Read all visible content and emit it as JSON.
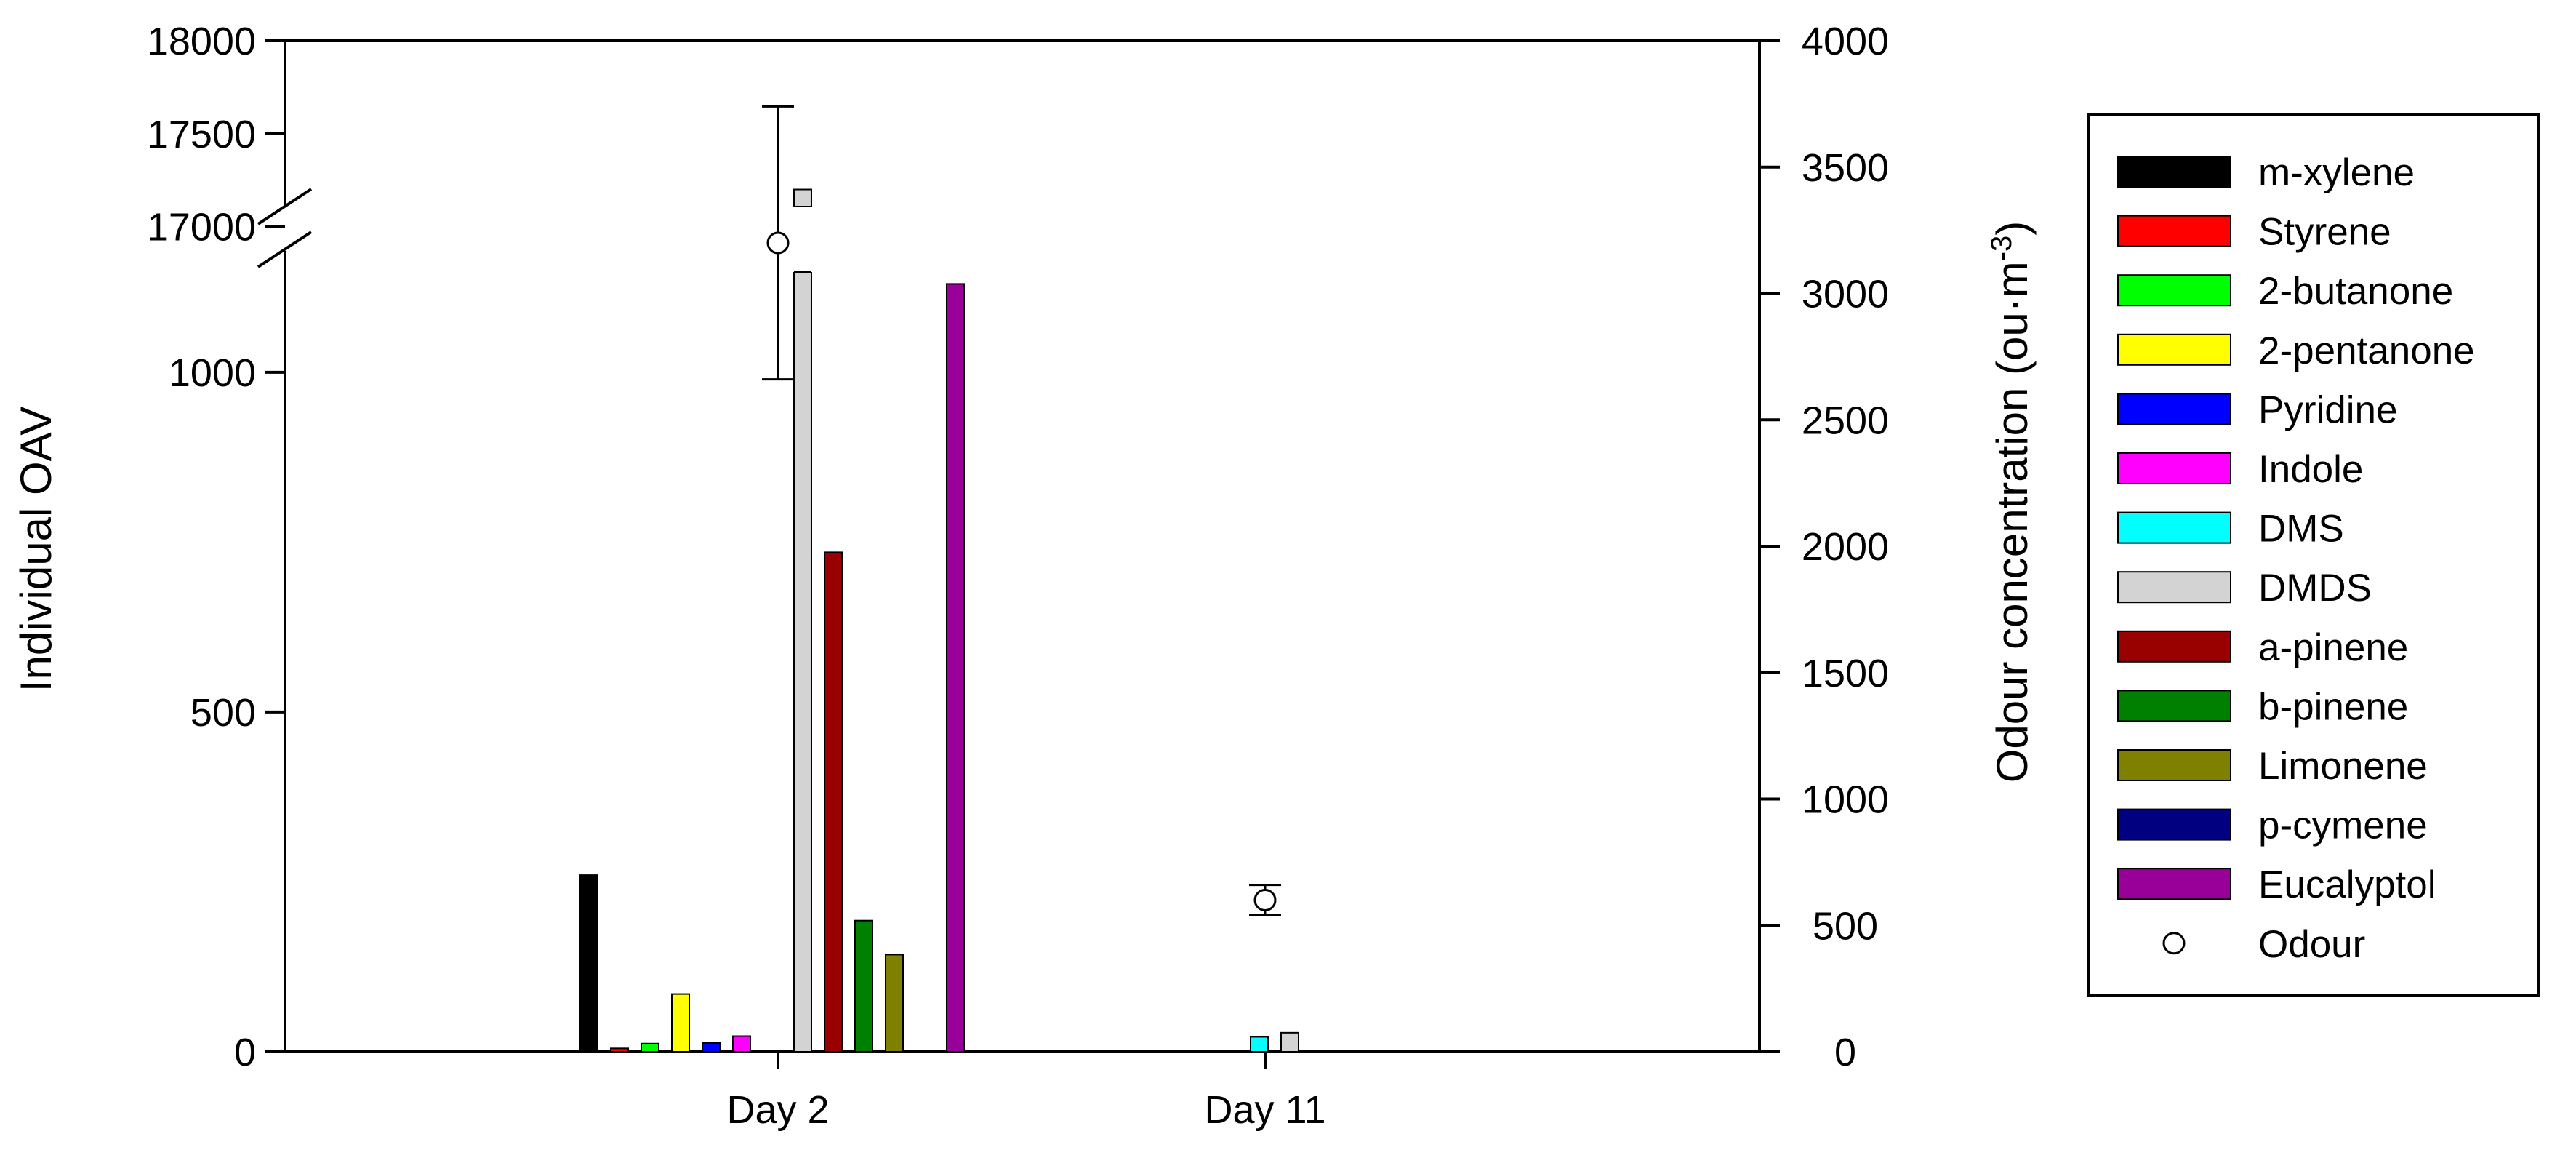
{
  "chart_data": {
    "type": "bar",
    "categories": [
      "Day 2",
      "Day 11"
    ],
    "ylabel": "Individual OAV",
    "y2label_main": "Odour concentration (ou·m",
    "y2label_sup": "-3",
    "y2label_close": ")",
    "y_lower_ticks": [
      "0",
      "500",
      "1000"
    ],
    "y_upper_ticks": [
      "17000",
      "17500",
      "18000"
    ],
    "y2_ticks": [
      "0",
      "500",
      "1000",
      "1500",
      "2000",
      "2500",
      "3000",
      "3500",
      "4000"
    ],
    "y_lower_range": [
      0,
      1200
    ],
    "y_upper_range": [
      16850,
      18000
    ],
    "y2_range": [
      0,
      4000
    ],
    "axis_break": true,
    "legend_position": "right",
    "series": [
      {
        "name": "m-xylene",
        "color": "#000000",
        "values": [
          260,
          0
        ]
      },
      {
        "name": "Styrene",
        "color": "#ff0000",
        "values": [
          5,
          0
        ]
      },
      {
        "name": "2-butanone",
        "color": "#00ff00",
        "values": [
          12,
          0
        ]
      },
      {
        "name": "2-pentanone",
        "color": "#ffff00",
        "values": [
          85,
          0
        ]
      },
      {
        "name": "Pyridine",
        "color": "#0000ff",
        "values": [
          13,
          0
        ]
      },
      {
        "name": "Indole",
        "color": "#ff00ff",
        "values": [
          23,
          0
        ]
      },
      {
        "name": "DMS",
        "color": "#00ffff",
        "values": [
          0,
          22
        ]
      },
      {
        "name": "DMDS",
        "color": "#d3d3d3",
        "values": [
          17200,
          28
        ]
      },
      {
        "name": "a-pinene",
        "color": "#990000",
        "values": [
          735,
          0
        ]
      },
      {
        "name": "b-pinene",
        "color": "#008000",
        "values": [
          193,
          0
        ]
      },
      {
        "name": "Limonene",
        "color": "#808000",
        "values": [
          143,
          0
        ]
      },
      {
        "name": "p-cymene",
        "color": "#000080",
        "values": [
          0,
          0
        ]
      },
      {
        "name": "Eucalyptol",
        "color": "#990099",
        "values": [
          1130,
          0
        ]
      }
    ],
    "odour": {
      "name": "Odour",
      "values": [
        3200,
        600
      ],
      "error": [
        540,
        60
      ]
    }
  }
}
